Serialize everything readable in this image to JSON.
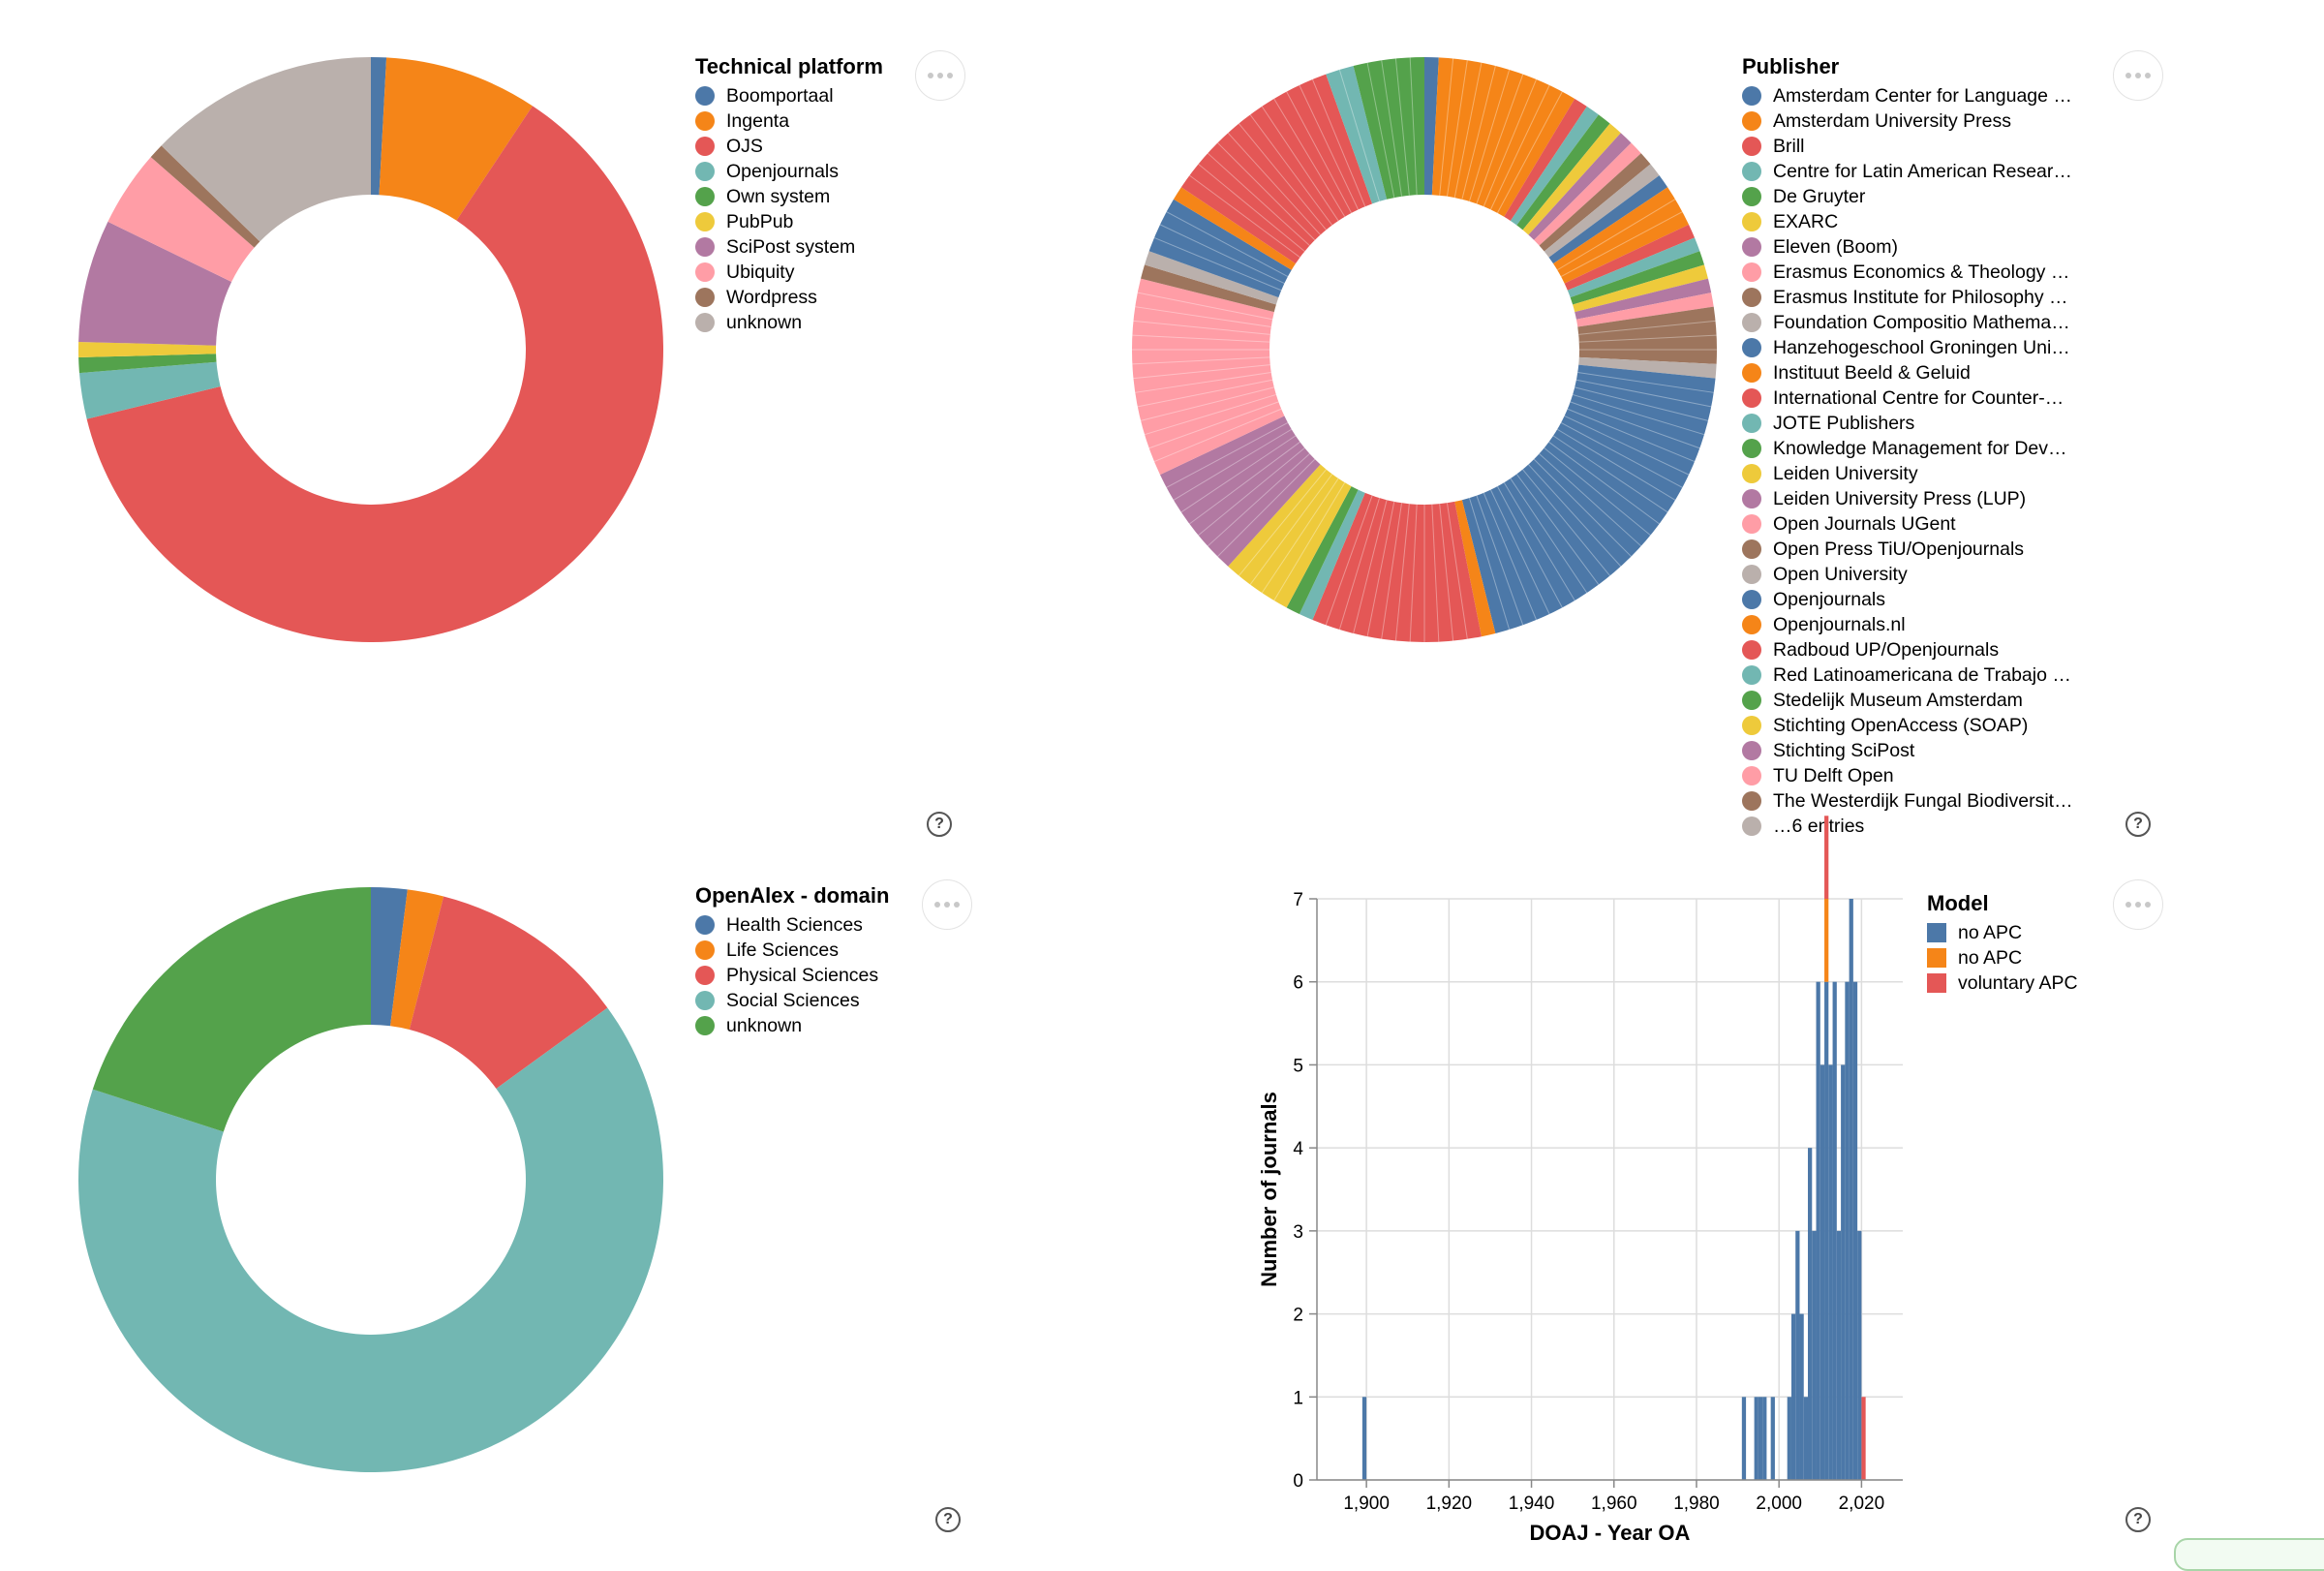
{
  "chart_data": [
    {
      "type": "pie",
      "legend_title": "Technical platform",
      "legend_position": "right",
      "slices": [
        {
          "label": "Boomportaal",
          "value": 1,
          "color": "#4c78a8"
        },
        {
          "label": "Ingenta",
          "value": 10,
          "color": "#f58518"
        },
        {
          "label": "OJS",
          "value": 73,
          "color": "#e45756"
        },
        {
          "label": "Openjournals",
          "value": 3,
          "color": "#72b7b2"
        },
        {
          "label": "Own system",
          "value": 1,
          "color": "#54a24b"
        },
        {
          "label": "PubPub",
          "value": 1,
          "color": "#eeca3b"
        },
        {
          "label": "SciPost system",
          "value": 8,
          "color": "#b279a2"
        },
        {
          "label": "Ubiquity",
          "value": 5,
          "color": "#ff9da6"
        },
        {
          "label": "Wordpress",
          "value": 1,
          "color": "#9d755d"
        },
        {
          "label": "unknown",
          "value": 15,
          "color": "#bab0ac"
        }
      ]
    },
    {
      "type": "pie",
      "legend_title": "Publisher",
      "legend_position": "right",
      "slices": [
        {
          "label": "Amsterdam Center for Language …",
          "value": 1,
          "color": "#4c78a8"
        },
        {
          "label": "Amsterdam University Press",
          "value": 10,
          "color": "#f58518"
        },
        {
          "label": "Brill",
          "value": 1,
          "color": "#e45756"
        },
        {
          "label": "Centre for Latin American Resear…",
          "value": 1,
          "color": "#72b7b2"
        },
        {
          "label": "De Gruyter",
          "value": 1,
          "color": "#54a24b"
        },
        {
          "label": "EXARC",
          "value": 1,
          "color": "#eeca3b"
        },
        {
          "label": "Eleven (Boom)",
          "value": 1,
          "color": "#b279a2"
        },
        {
          "label": "Erasmus Economics & Theology …",
          "value": 1,
          "color": "#ff9da6"
        },
        {
          "label": "Erasmus Institute for Philosophy …",
          "value": 1,
          "color": "#9d755d"
        },
        {
          "label": "Foundation Compositio Mathema…",
          "value": 1,
          "color": "#bab0ac"
        },
        {
          "label": "Hanzehogeschool Groningen Uni…",
          "value": 1,
          "color": "#4c78a8"
        },
        {
          "label": "Instituut Beeld & Geluid",
          "value": 3,
          "color": "#f58518"
        },
        {
          "label": "International Centre for Counter-…",
          "value": 1,
          "color": "#e45756"
        },
        {
          "label": "JOTE Publishers",
          "value": 1,
          "color": "#72b7b2"
        },
        {
          "label": "Knowledge Management for Dev…",
          "value": 1,
          "color": "#54a24b"
        },
        {
          "label": "Leiden University",
          "value": 1,
          "color": "#eeca3b"
        },
        {
          "label": "Leiden University Press (LUP)",
          "value": 1,
          "color": "#b279a2"
        },
        {
          "label": "Open Journals UGent",
          "value": 1,
          "color": "#ff9da6"
        },
        {
          "label": "Open Press TiU/Openjournals",
          "value": 4,
          "color": "#9d755d"
        },
        {
          "label": "Open University",
          "value": 1,
          "color": "#bab0ac"
        },
        {
          "label": "Openjournals",
          "value": 25,
          "color": "#4c78a8"
        },
        {
          "label": "Openjournals.nl",
          "value": 1,
          "color": "#f58518"
        },
        {
          "label": "Radboud UP/Openjournals",
          "value": 12,
          "color": "#e45756"
        },
        {
          "label": "Red Latinoamericana de Trabajo …",
          "value": 1,
          "color": "#72b7b2"
        },
        {
          "label": "Stedelijk Museum Amsterdam",
          "value": 1,
          "color": "#54a24b"
        },
        {
          "label": "Stichting OpenAccess (SOAP)",
          "value": 5,
          "color": "#eeca3b"
        },
        {
          "label": "Stichting SciPost",
          "value": 8,
          "color": "#b279a2"
        },
        {
          "label": "TU Delft Open",
          "value": 14,
          "color": "#ff9da6"
        },
        {
          "label": "The Westerdijk Fungal Biodiversit…",
          "value": 1,
          "color": "#9d755d"
        },
        {
          "label": "…6 entries",
          "value": 1,
          "color": "#bab0ac"
        },
        {
          "label": "",
          "value": 4,
          "color": "#4c78a8"
        },
        {
          "label": "",
          "value": 1,
          "color": "#f58518"
        },
        {
          "label": "",
          "value": 13,
          "color": "#e45756"
        },
        {
          "label": "",
          "value": 2,
          "color": "#72b7b2"
        },
        {
          "label": "",
          "value": 5,
          "color": "#54a24b"
        }
      ]
    },
    {
      "type": "pie",
      "legend_title": "OpenAlex - domain",
      "legend_position": "right",
      "slices": [
        {
          "label": "Health Sciences",
          "value": 2,
          "color": "#4c78a8"
        },
        {
          "label": "Life Sciences",
          "value": 2,
          "color": "#f58518"
        },
        {
          "label": "Physical Sciences",
          "value": 11,
          "color": "#e45756"
        },
        {
          "label": "Social Sciences",
          "value": 65,
          "color": "#72b7b2"
        },
        {
          "label": "unknown",
          "value": 20,
          "color": "#54a24b"
        }
      ]
    },
    {
      "type": "bar",
      "stacked": true,
      "xlabel": "DOAJ - Year OA",
      "ylabel": "Number of journals",
      "xlim": [
        1888,
        2030
      ],
      "ylim": [
        0,
        7
      ],
      "xticks": [
        1900,
        1920,
        1940,
        1960,
        1980,
        2000,
        2020
      ],
      "xtick_labels": [
        "1,900",
        "1,920",
        "1,940",
        "1,960",
        "1,980",
        "2,000",
        "2,020"
      ],
      "yticks": [
        0,
        1,
        2,
        3,
        4,
        5,
        6,
        7
      ],
      "ytick_labels": [
        "0",
        "1",
        "2",
        "3",
        "4",
        "5",
        "6",
        "7"
      ],
      "grid": true,
      "legend_title": "Model",
      "legend_position": "right",
      "bin_width": 1,
      "series": [
        {
          "name": "no APC",
          "color": "#4c78a8",
          "data": [
            [
              1899,
              1
            ],
            [
              1991,
              1
            ],
            [
              1994,
              1
            ],
            [
              1995,
              1
            ],
            [
              1996,
              1
            ],
            [
              1998,
              1
            ],
            [
              2002,
              1
            ],
            [
              2003,
              2
            ],
            [
              2004,
              3
            ],
            [
              2005,
              2
            ],
            [
              2006,
              1
            ],
            [
              2007,
              4
            ],
            [
              2008,
              3
            ],
            [
              2009,
              6
            ],
            [
              2010,
              5
            ],
            [
              2011,
              6
            ],
            [
              2012,
              5
            ],
            [
              2013,
              6
            ],
            [
              2014,
              3
            ],
            [
              2015,
              5
            ],
            [
              2016,
              6
            ],
            [
              2017,
              7
            ],
            [
              2018,
              6
            ],
            [
              2019,
              3
            ]
          ]
        },
        {
          "name": "no APC",
          "color": "#f58518",
          "data": [
            [
              2011,
              1
            ]
          ]
        },
        {
          "name": "voluntary APC",
          "color": "#e45756",
          "data": [
            [
              2011,
              1
            ],
            [
              2020,
              1
            ]
          ]
        }
      ]
    }
  ],
  "icons": {
    "more": "more-options-icon",
    "help": "help-icon"
  }
}
